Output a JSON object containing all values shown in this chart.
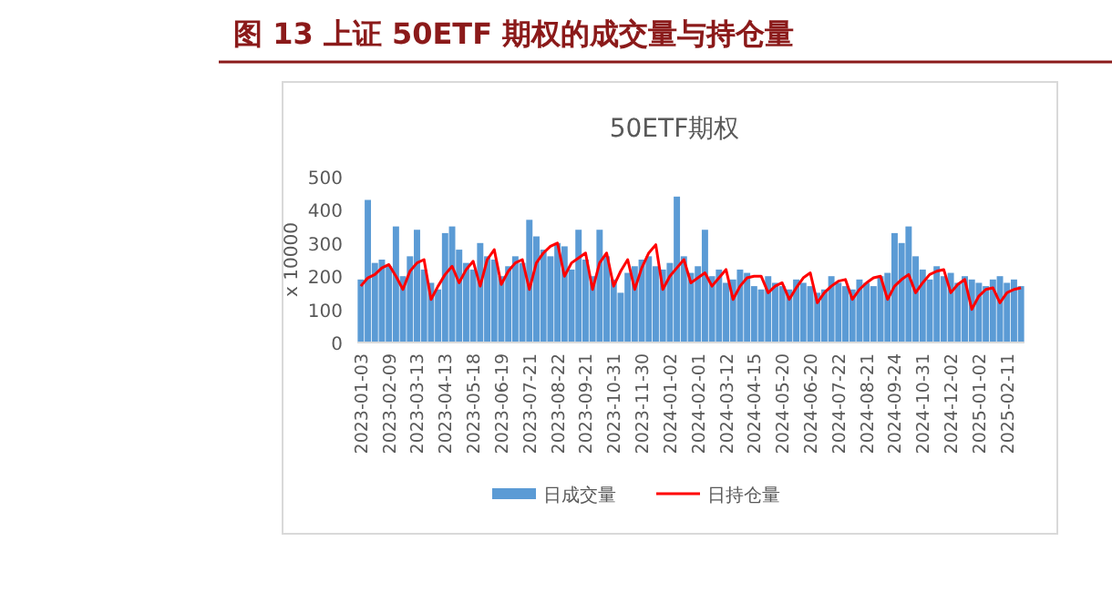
{
  "chart_data": {
    "type": "bar",
    "title": "图 13 上证 50ETF 期权的成交量与持仓量",
    "subtitle": "50ETF期权",
    "ylabel": "x 10000",
    "categories": [
      "2023-01-03",
      null,
      null,
      null,
      "2023-02-09",
      null,
      null,
      null,
      "2023-03-13",
      null,
      null,
      null,
      "2023-04-13",
      null,
      null,
      null,
      "2023-05-18",
      null,
      null,
      null,
      "2023-06-19",
      null,
      null,
      null,
      "2023-07-21",
      null,
      null,
      null,
      "2023-08-22",
      null,
      null,
      null,
      "2023-09-21",
      null,
      null,
      null,
      "2023-10-31",
      null,
      null,
      null,
      "2023-11-30",
      null,
      null,
      null,
      "2024-01-02",
      null,
      null,
      null,
      "2024-02-01",
      null,
      null,
      null,
      "2024-03-12",
      null,
      null,
      null,
      "2024-04-15",
      null,
      null,
      null,
      "2024-05-20",
      null,
      null,
      null,
      "2024-06-20",
      null,
      null,
      null,
      "2024-07-22",
      null,
      null,
      null,
      "2024-08-21",
      null,
      null,
      null,
      "2024-09-24",
      null,
      null,
      null,
      "2024-10-31",
      null,
      null,
      null,
      "2024-12-02",
      null,
      null,
      null,
      "2025-01-02",
      null,
      null,
      null,
      "2025-02-11",
      null,
      null
    ],
    "ylim": [
      0,
      500
    ],
    "yticks": [
      0,
      100,
      200,
      300,
      400,
      500
    ],
    "grid": false,
    "legend": "bottom",
    "series": [
      {
        "name": "日成交量",
        "color": "#5b9bd5",
        "values": [
          190,
          430,
          240,
          250,
          230,
          350,
          200,
          260,
          340,
          220,
          180,
          160,
          330,
          350,
          280,
          240,
          220,
          300,
          260,
          250,
          200,
          230,
          260,
          240,
          370,
          320,
          280,
          260,
          300,
          290,
          220,
          340,
          250,
          200,
          340,
          260,
          190,
          150,
          210,
          230,
          250,
          260,
          230,
          220,
          240,
          440,
          260,
          210,
          230,
          340,
          200,
          220,
          180,
          190,
          220,
          210,
          170,
          160,
          200,
          180,
          170,
          160,
          190,
          180,
          170,
          150,
          160,
          200,
          180,
          170,
          160,
          190,
          180,
          170,
          200,
          210,
          330,
          300,
          350,
          260,
          220,
          190,
          230,
          200,
          210,
          180,
          200,
          190,
          180,
          170,
          190,
          200,
          180,
          190,
          170
        ]
      },
      {
        "name": "日持仓量",
        "type": "line",
        "color": "#ff0000",
        "values": [
          170,
          195,
          205,
          225,
          235,
          200,
          160,
          215,
          240,
          250,
          130,
          170,
          205,
          230,
          180,
          220,
          245,
          170,
          250,
          280,
          175,
          215,
          240,
          250,
          160,
          240,
          270,
          290,
          300,
          200,
          240,
          255,
          270,
          160,
          240,
          270,
          170,
          215,
          250,
          160,
          225,
          270,
          295,
          160,
          200,
          225,
          250,
          180,
          195,
          210,
          170,
          195,
          220,
          130,
          170,
          195,
          200,
          200,
          150,
          170,
          180,
          130,
          165,
          195,
          210,
          120,
          150,
          170,
          185,
          190,
          130,
          160,
          180,
          195,
          200,
          130,
          170,
          190,
          205,
          150,
          180,
          205,
          215,
          220,
          150,
          175,
          190,
          100,
          140,
          160,
          165,
          120,
          150,
          160,
          165
        ]
      }
    ]
  }
}
